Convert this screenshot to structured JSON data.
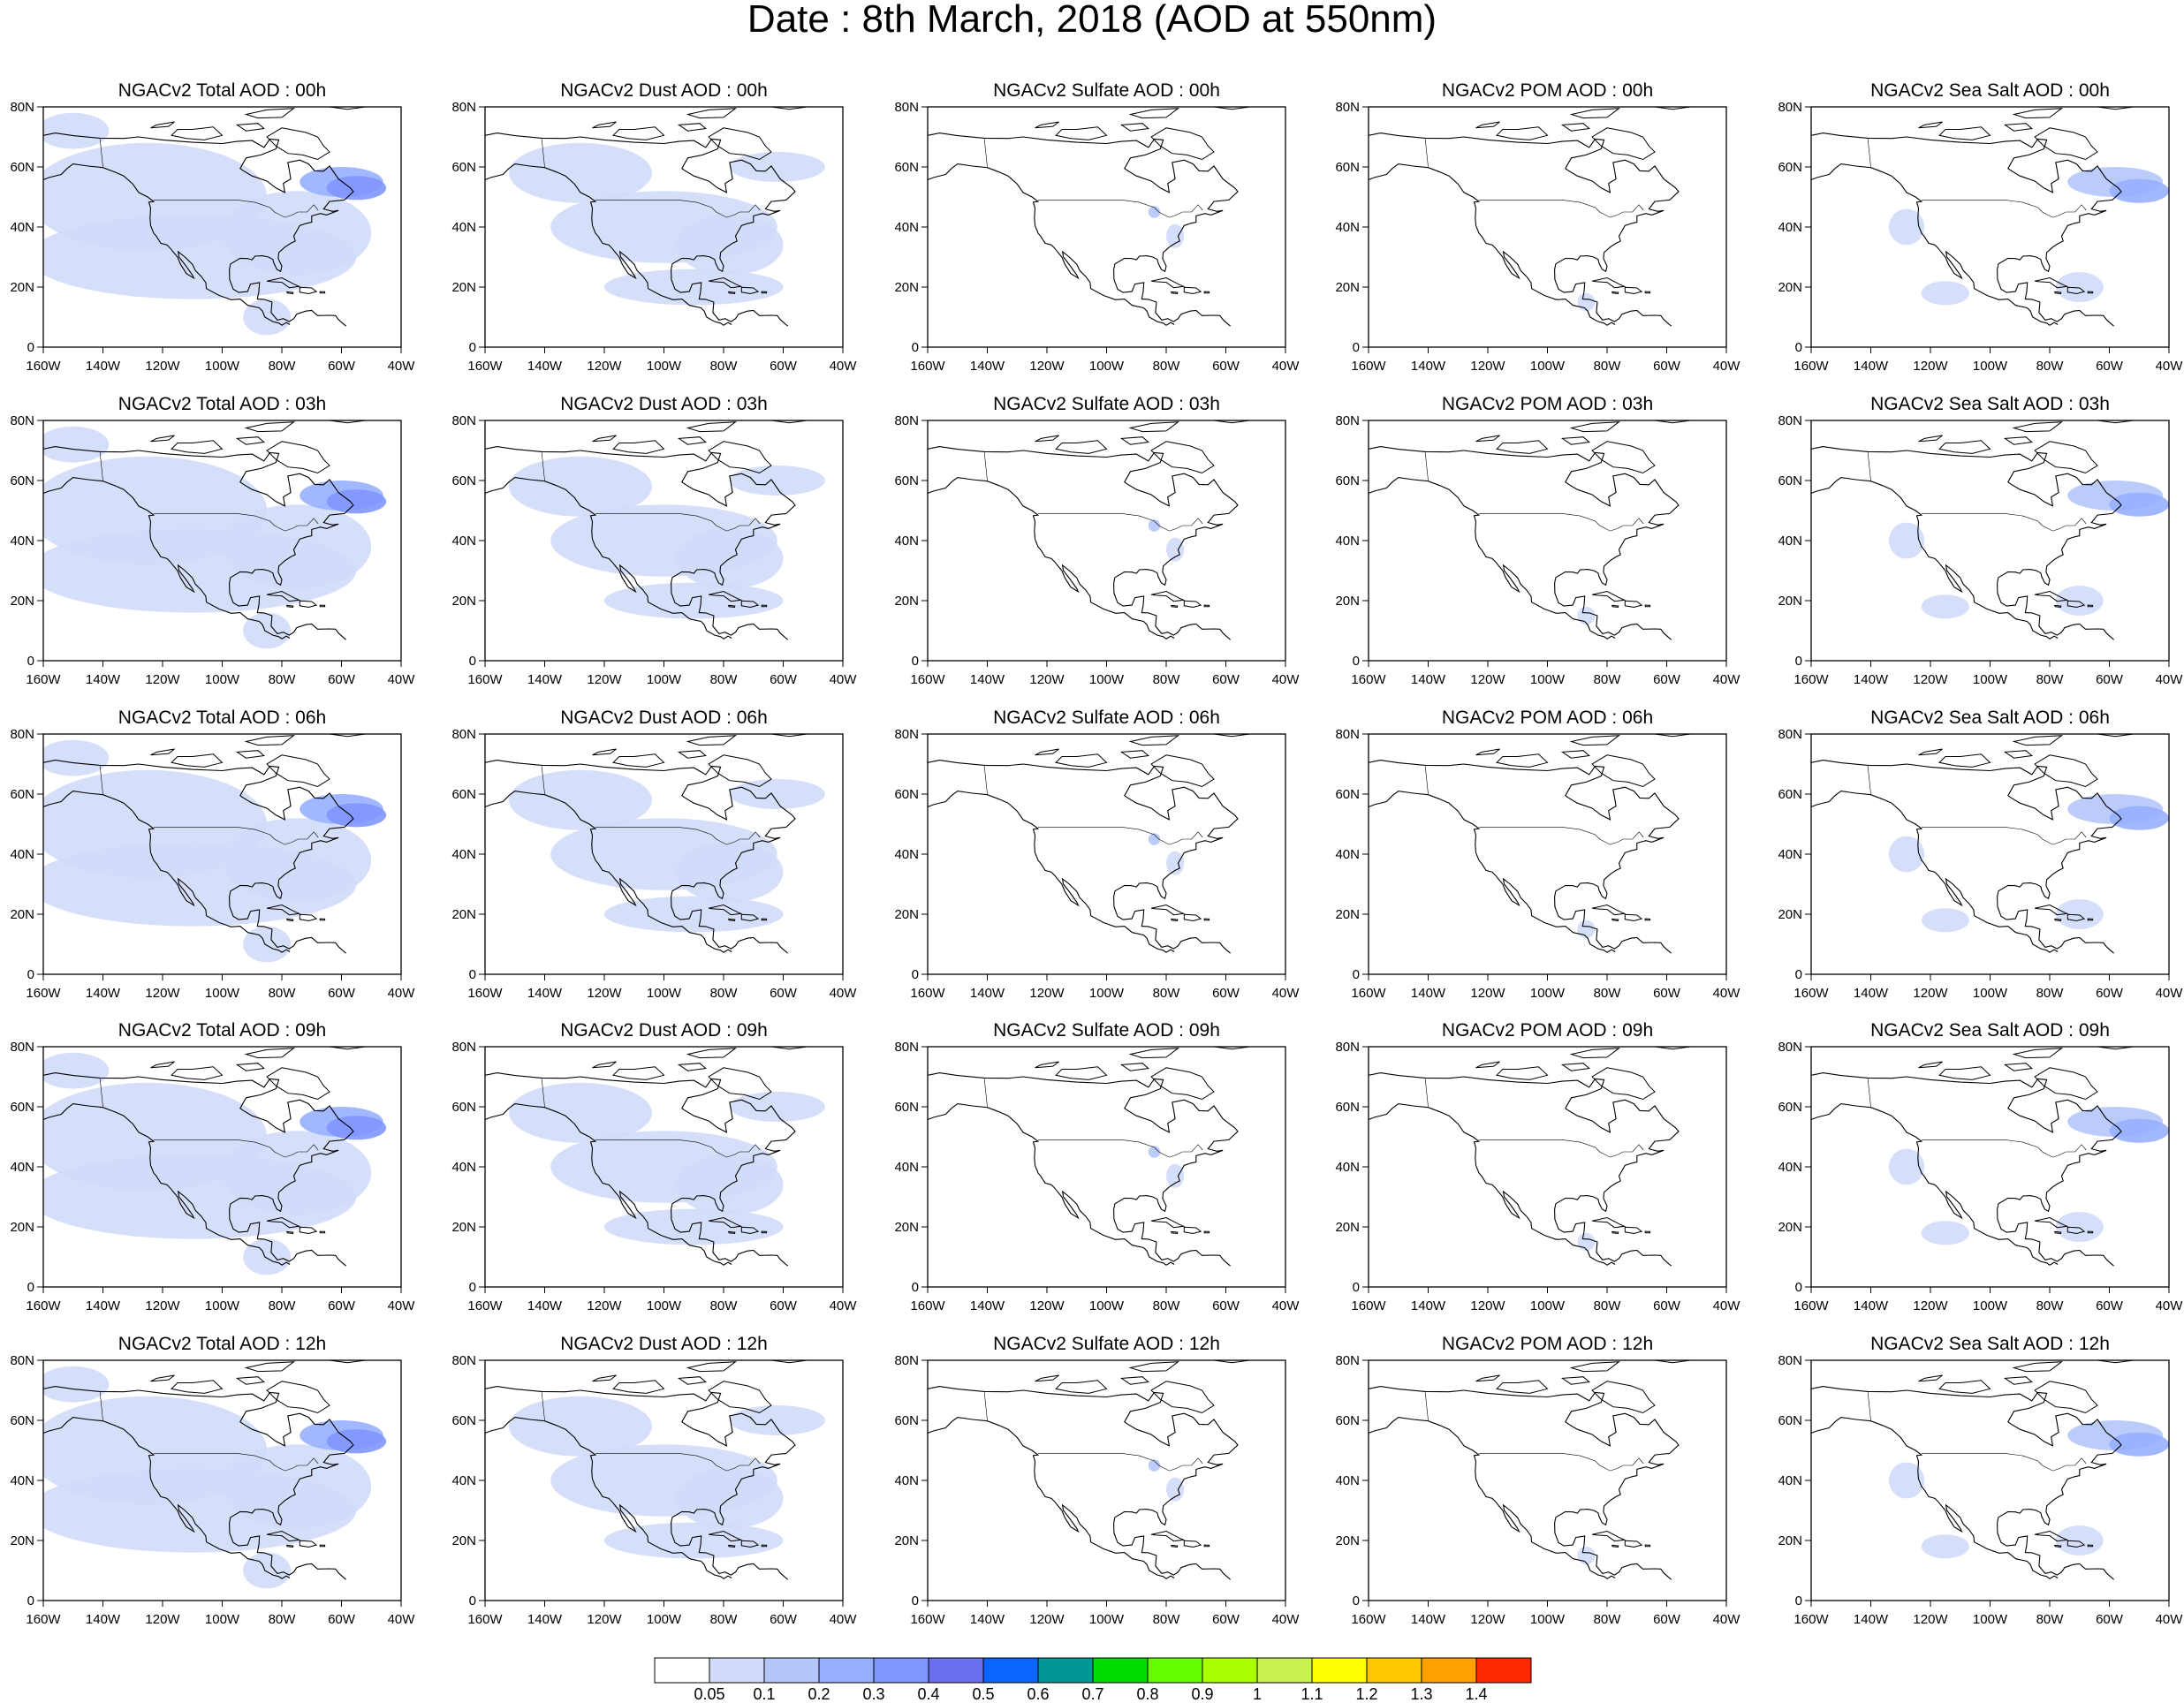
{
  "title": "Date : 8th March, 2018 (AOD at 550nm)",
  "axes": {
    "y_ticks": [
      "80N",
      "60N",
      "40N",
      "20N",
      "0"
    ],
    "x_ticks": [
      "160W",
      "140W",
      "120W",
      "100W",
      "80W",
      "60W",
      "40W"
    ],
    "lon_range": [
      -160,
      -40
    ],
    "lat_range": [
      0,
      80
    ]
  },
  "panels": [
    [
      {
        "title": "NGACv2 Total AOD : 00h",
        "type": "total"
      },
      {
        "title": "NGACv2 Dust AOD : 00h",
        "type": "dust"
      },
      {
        "title": "NGACv2 Sulfate AOD : 00h",
        "type": "sulfate"
      },
      {
        "title": "NGACv2 POM AOD : 00h",
        "type": "pom"
      },
      {
        "title": "NGACv2 Sea Salt AOD : 00h",
        "type": "seasalt"
      }
    ],
    [
      {
        "title": "NGACv2 Total AOD : 03h",
        "type": "total"
      },
      {
        "title": "NGACv2 Dust AOD : 03h",
        "type": "dust"
      },
      {
        "title": "NGACv2 Sulfate AOD : 03h",
        "type": "sulfate"
      },
      {
        "title": "NGACv2 POM AOD : 03h",
        "type": "pom"
      },
      {
        "title": "NGACv2 Sea Salt AOD : 03h",
        "type": "seasalt"
      }
    ],
    [
      {
        "title": "NGACv2 Total AOD : 06h",
        "type": "total"
      },
      {
        "title": "NGACv2 Dust AOD : 06h",
        "type": "dust"
      },
      {
        "title": "NGACv2 Sulfate AOD : 06h",
        "type": "sulfate"
      },
      {
        "title": "NGACv2 POM AOD : 06h",
        "type": "pom"
      },
      {
        "title": "NGACv2 Sea Salt AOD : 06h",
        "type": "seasalt"
      }
    ],
    [
      {
        "title": "NGACv2 Total AOD : 09h",
        "type": "total"
      },
      {
        "title": "NGACv2 Dust AOD : 09h",
        "type": "dust"
      },
      {
        "title": "NGACv2 Sulfate AOD : 09h",
        "type": "sulfate"
      },
      {
        "title": "NGACv2 POM AOD : 09h",
        "type": "pom"
      },
      {
        "title": "NGACv2 Sea Salt  AOD : 09h",
        "type": "seasalt"
      }
    ],
    [
      {
        "title": "NGACv2 Total AOD  : 12h",
        "type": "total"
      },
      {
        "title": "NGACv2 Dust AOD : 12h",
        "type": "dust"
      },
      {
        "title": "NGACv2 Sulfate AOD : 12h",
        "type": "sulfate"
      },
      {
        "title": "NGACv2 POM  AOD : 12h",
        "type": "pom"
      },
      {
        "title": "NGACv2 Sea Salt  AOD : 12h",
        "type": "seasalt"
      }
    ]
  ],
  "colorbar": {
    "labels": [
      "0.05",
      "0.1",
      "0.2",
      "0.3",
      "0.4",
      "0.5",
      "0.6",
      "0.7",
      "0.8",
      "0.9",
      "1",
      "1.1",
      "1.2",
      "1.3",
      "1.4"
    ],
    "colors": [
      "#ffffff",
      "#d2dcfa",
      "#b4c6fa",
      "#97afff",
      "#7f96ff",
      "#6a6ef0",
      "#0a64ff",
      "#009696",
      "#00dc00",
      "#64ff00",
      "#aaff00",
      "#c8f050",
      "#ffff00",
      "#ffc800",
      "#ffa000",
      "#ff7800",
      "#ff2800"
    ]
  }
}
